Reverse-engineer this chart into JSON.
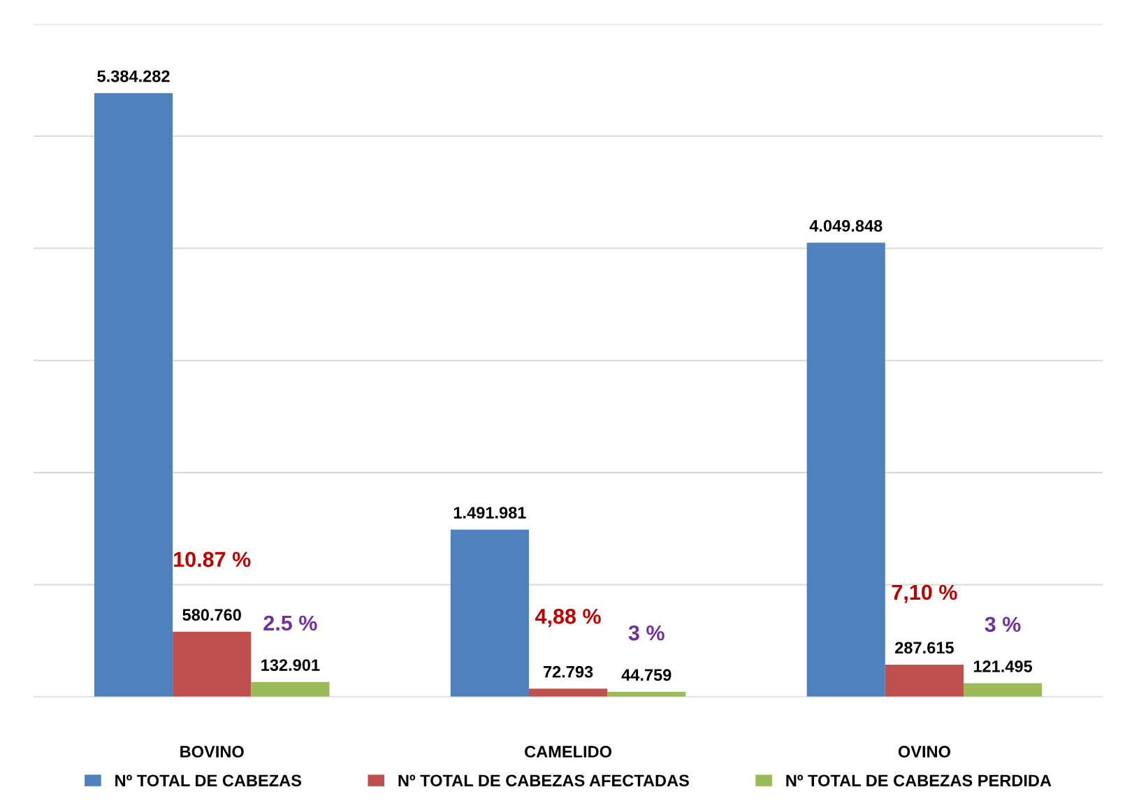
{
  "chart_data": {
    "type": "bar",
    "categories": [
      "BOVINO",
      "CAMELIDO",
      "OVINO"
    ],
    "series": [
      {
        "name": "Nº TOTAL DE CABEZAS",
        "color": "#4f81bd",
        "values": [
          5384282,
          1491981,
          4049848
        ],
        "value_labels": [
          "5.384.282",
          "1.491.981",
          "4.049.848"
        ]
      },
      {
        "name": "Nº TOTAL DE CABEZAS AFECTADAS",
        "color": "#c0504d",
        "values": [
          580760,
          72793,
          287615
        ],
        "value_labels": [
          "580.760",
          "72.793",
          "287.615"
        ]
      },
      {
        "name": "Nº TOTAL DE CABEZAS PERDIDA",
        "color": "#9bbb59",
        "values": [
          132901,
          44759,
          121495
        ],
        "value_labels": [
          "132.901",
          "44.759",
          "121.495"
        ]
      }
    ],
    "annotations": [
      "10.87 %",
      "2.5 %",
      "4,88 %",
      "3 %",
      "7,10 %",
      "3 %"
    ],
    "yticks": [
      {
        "value": 0,
        "label": null
      },
      {
        "value": 1000000,
        "label": null
      },
      {
        "value": 2000000,
        "label": null
      },
      {
        "value": 3000000,
        "label": null
      },
      {
        "value": 4000000,
        "label": null
      },
      {
        "value": 5000000,
        "label": null
      },
      {
        "value": 6000000,
        "label": null
      }
    ],
    "tick_labels": "x",
    "grid": "y",
    "legend": "bottom"
  }
}
